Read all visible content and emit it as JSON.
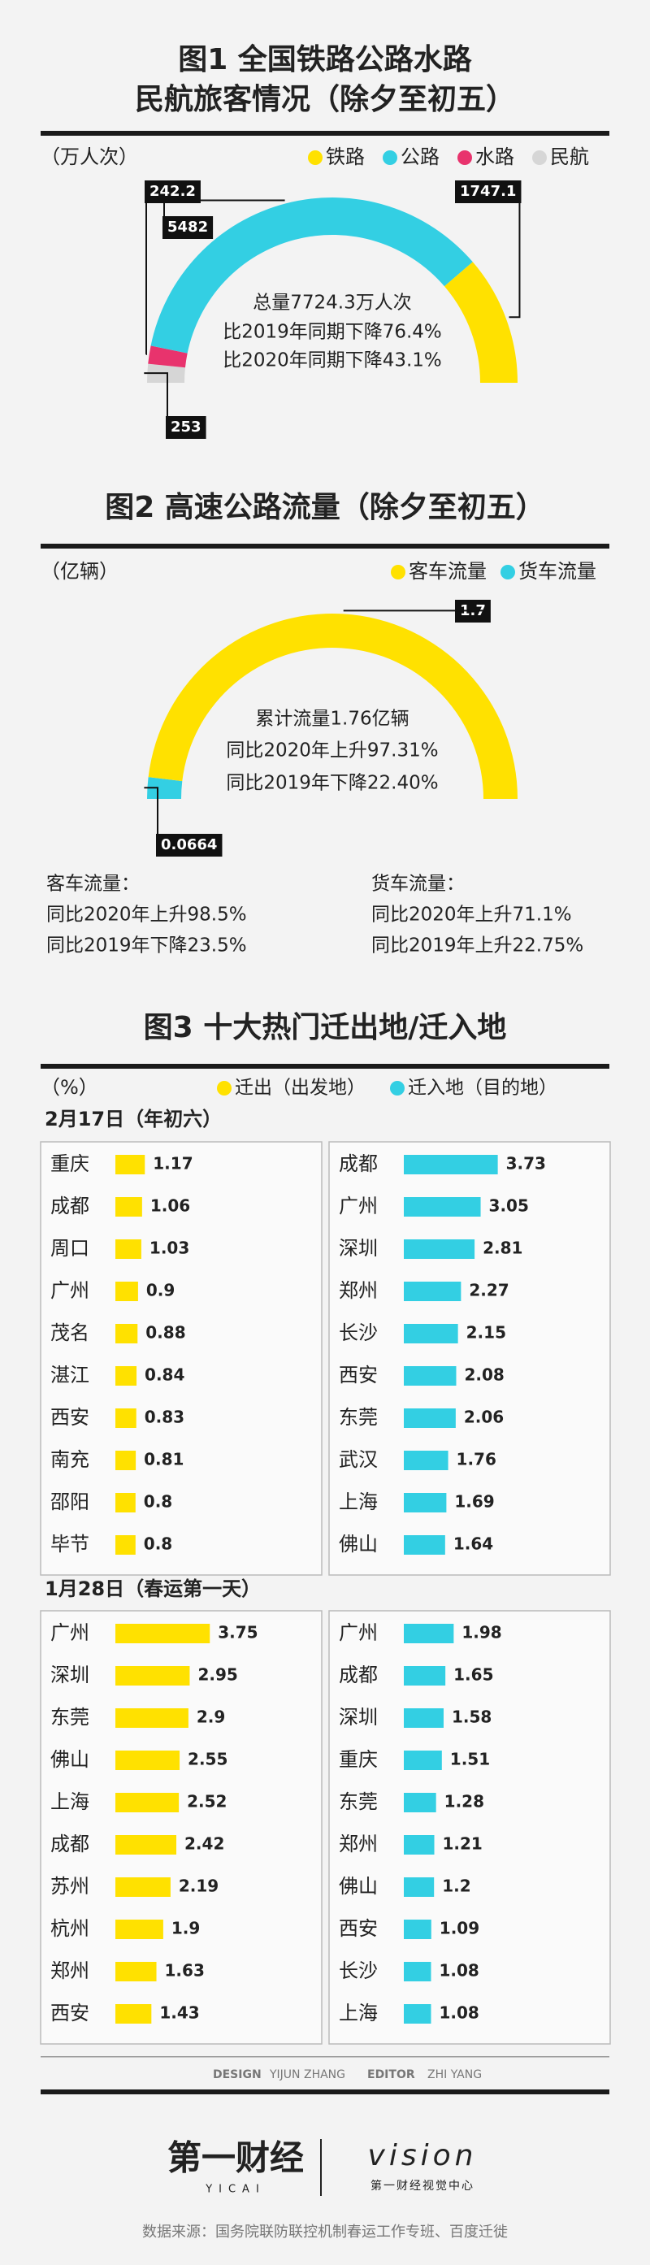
{
  "chart_data": [
    {
      "type": "semicircle",
      "title": [
        "图1 全国铁路公路水路",
        "民航旅客情况（除夕至初五）"
      ],
      "unit": "（万人次）",
      "categories": [
        "铁路",
        "公路",
        "水路",
        "民航"
      ],
      "values": [
        1747.1,
        5482,
        242.2,
        253
      ],
      "colors": [
        "#ffe100",
        "#33cfe3",
        "#e8336d",
        "#d6d6d6"
      ],
      "annotations": [
        "总量7724.3万人次",
        "比2019年同期下降76.4%",
        "比2020年同期下降43.1%"
      ]
    },
    {
      "type": "semicircle",
      "title": [
        "图2 高速公路流量（除夕至初五）"
      ],
      "unit": "（亿辆）",
      "categories": [
        "客车流量",
        "货车流量"
      ],
      "values": [
        1.7,
        0.0664
      ],
      "colors": [
        "#ffe100",
        "#33cfe3"
      ],
      "annotations": [
        "累计流量1.76亿辆",
        "同比2020年上升97.31%",
        "同比2019年下降22.40%"
      ],
      "notes": [
        [
          "客车流量：",
          "同比2020年上升98.5%",
          "同比2019年下降23.5%"
        ],
        [
          "货车流量：",
          "同比2020年上升71.1%",
          "同比2019年上升22.75%"
        ]
      ]
    },
    {
      "type": "bar-panels",
      "title": "图3 十大热门迁出地/迁入地",
      "unit": "（%）",
      "series": [
        {
          "name": "迁出（出发地）",
          "color": "#ffe100"
        },
        {
          "name": "迁入地（目的地）",
          "color": "#33cfe3"
        }
      ],
      "groups": [
        {
          "label": "2月17日（年初六）",
          "panels": [
            {
              "categories": [
                "重庆",
                "成都",
                "周口",
                "广州",
                "茂名",
                "湛江",
                "西安",
                "南充",
                "邵阳",
                "毕节"
              ],
              "values": [
                1.17,
                1.06,
                1.03,
                0.9,
                0.88,
                0.84,
                0.83,
                0.81,
                0.8,
                0.8
              ]
            },
            {
              "categories": [
                "成都",
                "广州",
                "深圳",
                "郑州",
                "长沙",
                "西安",
                "东莞",
                "武汉",
                "上海",
                "佛山"
              ],
              "values": [
                3.73,
                3.05,
                2.81,
                2.27,
                2.15,
                2.08,
                2.06,
                1.76,
                1.69,
                1.64
              ]
            }
          ]
        },
        {
          "label": "1月28日（春运第一天）",
          "panels": [
            {
              "categories": [
                "广州",
                "深圳",
                "东莞",
                "佛山",
                "上海",
                "成都",
                "苏州",
                "杭州",
                "郑州",
                "西安"
              ],
              "values": [
                3.75,
                2.95,
                2.9,
                2.55,
                2.52,
                2.42,
                2.19,
                1.9,
                1.63,
                1.43
              ]
            },
            {
              "categories": [
                "广州",
                "成都",
                "深圳",
                "重庆",
                "东莞",
                "郑州",
                "佛山",
                "西安",
                "长沙",
                "上海"
              ],
              "values": [
                1.98,
                1.65,
                1.58,
                1.51,
                1.28,
                1.21,
                1.2,
                1.09,
                1.08,
                1.08
              ]
            }
          ]
        }
      ]
    }
  ],
  "credits": {
    "design_label": "DESIGN",
    "designer": "YIJUN ZHANG",
    "editor_label": "EDITOR",
    "editor": "ZHI YANG"
  },
  "logo": {
    "brand": "第一财经",
    "brand_en": "YICAI",
    "vision": "vision",
    "vision_sub": "第一财经视觉中心"
  },
  "source": "数据来源：国务院联防联控机制春运工作专班、百度迁徙"
}
